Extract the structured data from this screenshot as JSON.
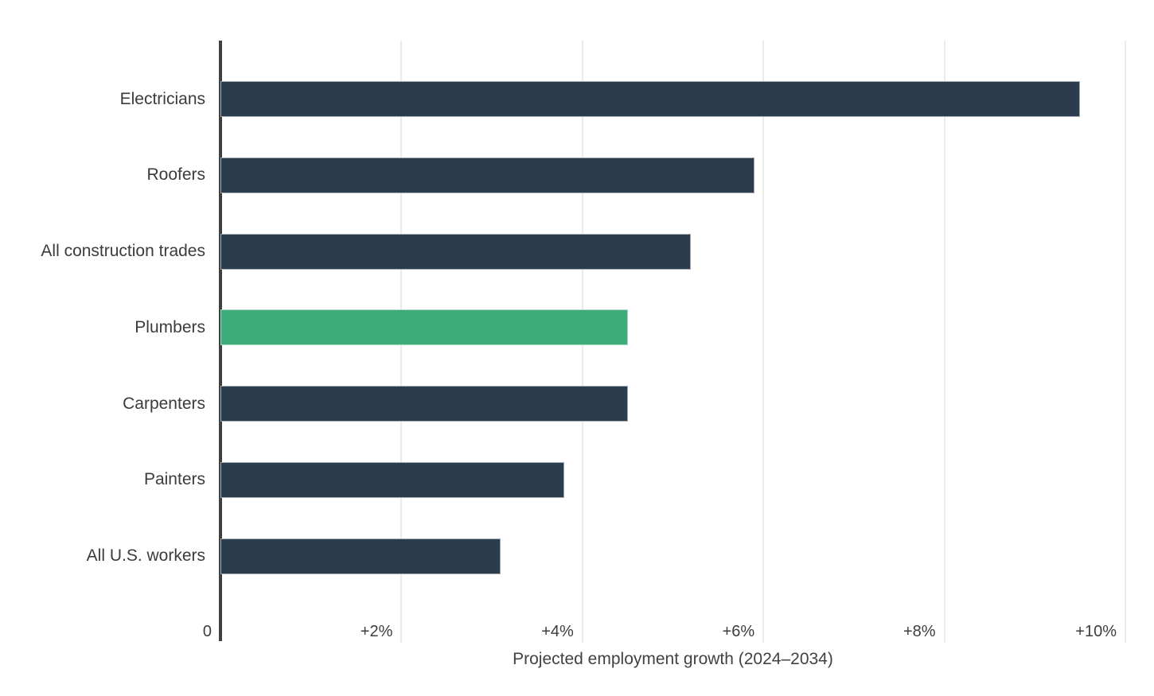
{
  "chart_data": {
    "type": "bar",
    "orientation": "horizontal",
    "title": "",
    "xlabel": "Projected employment growth (2024–2034)",
    "ylabel": "",
    "xlim": [
      0,
      10
    ],
    "grid": true,
    "legend": "none",
    "categories": [
      "Electricians",
      "Roofers",
      "All construction trades",
      "Plumbers",
      "Carpenters",
      "Painters",
      "All U.S. workers"
    ],
    "values": [
      9.5,
      5.9,
      5.2,
      4.5,
      4.5,
      3.8,
      3.1
    ],
    "highlight": {
      "category": "Plumbers",
      "color": "#3dac78"
    },
    "x_ticks": [
      {
        "value": 0,
        "label": "0"
      },
      {
        "value": 2,
        "label": "+2%"
      },
      {
        "value": 4,
        "label": "+4%"
      },
      {
        "value": 6,
        "label": "+6%"
      },
      {
        "value": 8,
        "label": "+8%"
      },
      {
        "value": 10,
        "label": "+10%"
      }
    ],
    "colors": {
      "bar": "#2b3c4e",
      "highlight_bar": "#3dac78",
      "axis_line": "#404040",
      "gridline": "#ebebeb",
      "label_text": "#3b3b3b",
      "background": "#ffffff"
    }
  }
}
